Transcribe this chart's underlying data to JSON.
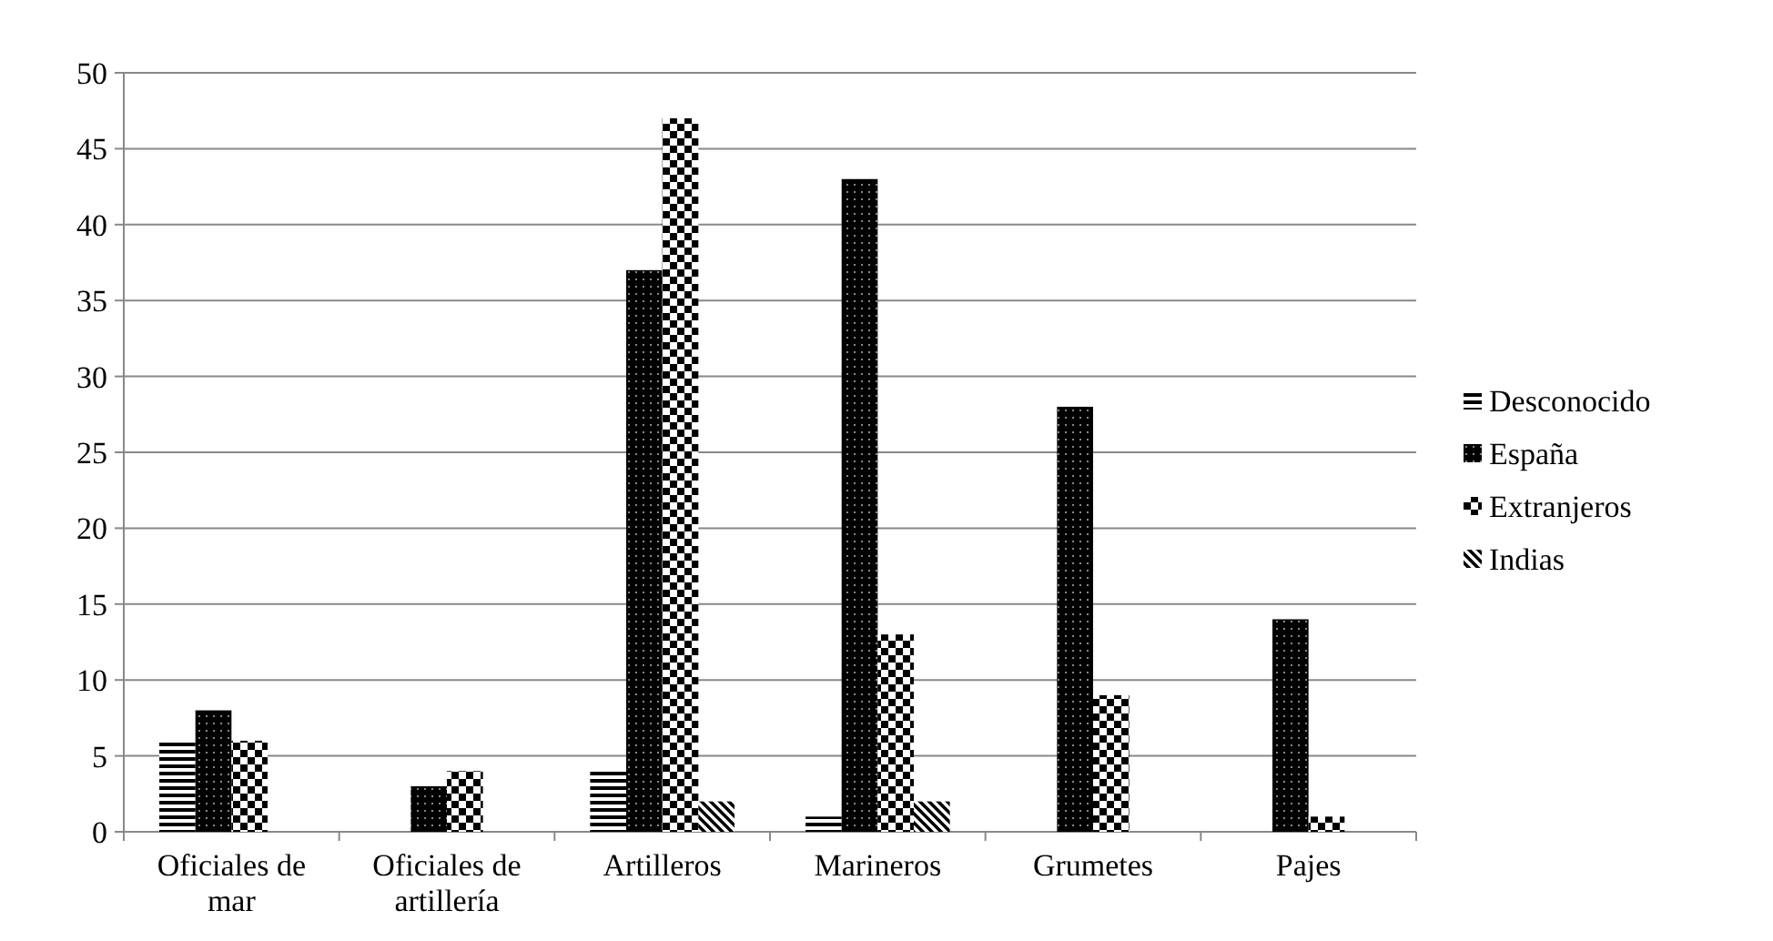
{
  "chart_data": {
    "type": "bar",
    "categories": [
      "Oficiales de mar",
      "Oficiales de artillería",
      "Artilleros",
      "Marineros",
      "Grumetes",
      "Pajes"
    ],
    "series": [
      {
        "name": "Desconocido",
        "color": "#000000",
        "values": [
          6,
          0,
          4,
          1,
          0,
          0
        ]
      },
      {
        "name": "España",
        "color": "#000000",
        "values": [
          8,
          3,
          37,
          43,
          28,
          14
        ]
      },
      {
        "name": "Extranjeros",
        "color": "#000000",
        "values": [
          6,
          4,
          47,
          13,
          9,
          1
        ]
      },
      {
        "name": "Indias",
        "color": "#000000",
        "values": [
          0,
          0,
          2,
          2,
          0,
          0
        ]
      }
    ],
    "ylim": [
      0,
      50
    ],
    "yticks": [
      0,
      5,
      10,
      15,
      20,
      25,
      30,
      35,
      40,
      45,
      50
    ],
    "grid": "y",
    "legend": "right"
  }
}
